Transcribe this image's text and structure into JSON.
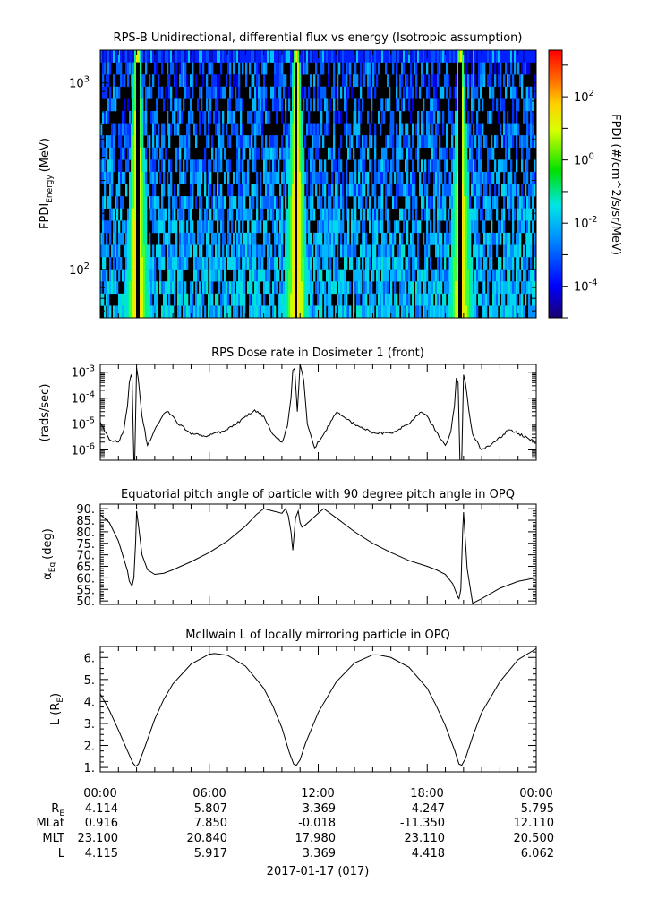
{
  "chart_data": [
    {
      "type": "heatmap",
      "title": "RPS-B  Unidirectional, differential flux vs energy (Isotropic assumption)",
      "ylabel": "FPDI",
      "ylabel_sub": "Energy",
      "ylabel_unit": "(MeV)",
      "yscale": "log",
      "ylim": [
        55,
        1500
      ],
      "ytick_values": [
        100,
        1000
      ],
      "ytick_labels": [
        {
          "base": "10",
          "exp": "2"
        },
        {
          "base": "10",
          "exp": "3"
        }
      ],
      "colorbar": {
        "label": "FPDI (#/cm^2/s/sr/MeV)",
        "scale": "log",
        "range": [
          1e-05,
          3000
        ],
        "tick_values": [
          0.0001,
          0.01,
          1,
          100
        ],
        "tick_labels": [
          {
            "base": "10",
            "exp": "-4"
          },
          {
            "base": "10",
            "exp": "-2"
          },
          {
            "base": "10",
            "exp": "0"
          },
          {
            "base": "10",
            "exp": "2"
          }
        ]
      },
      "pass_centers_hours": [
        2.0,
        10.75,
        19.8
      ]
    },
    {
      "type": "line",
      "title": "RPS  Dose rate in Dosimeter 1 (front)",
      "ylabel": "(rads/sec)",
      "yscale": "log",
      "ylim": [
        4e-07,
        0.002
      ],
      "ytick_values": [
        1e-06,
        1e-05,
        0.0001,
        0.001
      ],
      "ytick_labels": [
        {
          "base": "10",
          "exp": "-6"
        },
        {
          "base": "10",
          "exp": "-5"
        },
        {
          "base": "10",
          "exp": "-4"
        },
        {
          "base": "10",
          "exp": "-3"
        }
      ],
      "series": [
        {
          "x": [
            0,
            0.5,
            1.0,
            1.3,
            1.5,
            1.6,
            1.7,
            1.75,
            1.85,
            1.9,
            2.0,
            2.1,
            2.3,
            2.6,
            3.0,
            3.5,
            3.75,
            4.2,
            5.0,
            6.0,
            7.0,
            7.5,
            8.0,
            8.5,
            9.0,
            9.5,
            10.0,
            10.3,
            10.5,
            10.6,
            10.7,
            10.85,
            11.0,
            11.2,
            11.4,
            11.8,
            12.3,
            13.0,
            14.0,
            15.0,
            16.0,
            17.0,
            17.6,
            18.0,
            18.5,
            19.0,
            19.3,
            19.5,
            19.6,
            19.7,
            19.8,
            19.9,
            20.0,
            20.1,
            20.3,
            20.5,
            21.0,
            21.5,
            22.5,
            23.5,
            24.0
          ],
          "y": [
            1.2e-05,
            2.5e-06,
            2e-06,
            6e-06,
            5e-05,
            0.0004,
            0.0008,
            0.0006,
            4e-07,
            4e-07,
            0.0015,
            0.0005,
            2e-05,
            1.5e-06,
            6e-06,
            2.5e-05,
            3e-05,
            1.2e-05,
            4e-06,
            3.5e-06,
            6e-06,
            1e-05,
            2e-05,
            3.5e-05,
            2e-05,
            4e-06,
            2e-06,
            8e-06,
            0.0001,
            0.0012,
            0.0014,
            3e-05,
            0.002,
            0.0005,
            1e-05,
            1.2e-06,
            4e-06,
            2.8e-05,
            1e-05,
            4.5e-06,
            4.5e-06,
            1e-05,
            2.8e-05,
            2e-05,
            5e-06,
            1.5e-06,
            5e-06,
            5e-05,
            0.0006,
            0.0004,
            4e-07,
            4e-07,
            0.0008,
            0.0004,
            3e-05,
            4e-06,
            1e-06,
            1.5e-06,
            6e-06,
            3e-06,
            1.8e-06
          ]
        }
      ]
    },
    {
      "type": "line",
      "title": "Equatorial pitch angle of particle with 90 degree pitch angle in OPQ",
      "ylabel": "α",
      "ylabel_sub": "Eq",
      "ylabel_unit": "(deg)",
      "ylim": [
        48.5,
        92
      ],
      "yticks": [
        "50.",
        "55.",
        "60.",
        "65.",
        "70.",
        "75.",
        "80.",
        "85.",
        "90."
      ],
      "ytick_values": [
        50,
        55,
        60,
        65,
        70,
        75,
        80,
        85,
        90
      ],
      "series": [
        {
          "x": [
            0,
            0.5,
            1.0,
            1.5,
            1.6,
            1.75,
            1.85,
            1.95,
            2.0,
            2.1,
            2.3,
            2.6,
            3.0,
            3.5,
            4.0,
            5.0,
            6.0,
            7.0,
            8.0,
            8.6,
            9.0,
            9.5,
            10.0,
            10.2,
            10.35,
            10.5,
            10.6,
            10.75,
            10.9,
            11.0,
            11.1,
            11.3,
            12.0,
            12.3,
            13.0,
            14.0,
            15.0,
            16.0,
            17.0,
            18.0,
            18.5,
            19.0,
            19.4,
            19.6,
            19.7,
            19.75,
            19.85,
            19.95,
            20.0,
            20.2,
            20.5,
            21.0,
            22.0,
            23.0,
            24.0
          ],
          "y": [
            87.5,
            84.0,
            76.0,
            63.0,
            58.5,
            56.5,
            60.0,
            76.0,
            89.0,
            83.0,
            70.0,
            63.5,
            61.5,
            62.0,
            63.5,
            67.0,
            71.0,
            76.0,
            82.5,
            87.5,
            90.0,
            89.0,
            88.0,
            90.0,
            87.0,
            80.0,
            72.0,
            86.0,
            89.0,
            84.0,
            82.0,
            83.0,
            88.0,
            90.0,
            86.0,
            80.0,
            75.0,
            71.0,
            67.5,
            65.0,
            63.5,
            61.5,
            57.5,
            53.5,
            51.5,
            51.0,
            55.0,
            80.0,
            88.5,
            64.0,
            49.0,
            51.0,
            55.5,
            58.5,
            60.0
          ]
        }
      ]
    },
    {
      "type": "line",
      "title": "McIlwain L of locally mirroring particle in OPQ",
      "ylabel": "L (R",
      "ylabel_sub": "E",
      "ylabel_unit": ")",
      "ylim": [
        0.8,
        6.5
      ],
      "yticks": [
        "1.",
        "2.",
        "3.",
        "4.",
        "5.",
        "6."
      ],
      "ytick_values": [
        1,
        2,
        3,
        4,
        5,
        6
      ],
      "series": [
        {
          "x": [
            0,
            0.5,
            1.0,
            1.5,
            1.8,
            1.95,
            2.1,
            2.4,
            3.0,
            3.5,
            4.0,
            5.0,
            6.0,
            6.3,
            7.0,
            8.0,
            9.0,
            9.5,
            10.0,
            10.4,
            10.65,
            10.8,
            11.0,
            11.3,
            12.0,
            13.0,
            14.0,
            15.0,
            15.3,
            16.0,
            17.0,
            18.0,
            18.5,
            19.0,
            19.5,
            19.75,
            19.9,
            20.1,
            20.5,
            21.0,
            22.0,
            23.0,
            24.0
          ],
          "y": [
            4.35,
            3.6,
            2.7,
            1.75,
            1.2,
            1.05,
            1.15,
            1.8,
            3.2,
            4.1,
            4.8,
            5.7,
            6.15,
            6.18,
            6.1,
            5.6,
            4.6,
            3.8,
            2.8,
            1.7,
            1.15,
            1.1,
            1.35,
            2.1,
            3.5,
            4.9,
            5.75,
            6.12,
            6.12,
            6.0,
            5.55,
            4.6,
            3.8,
            2.9,
            1.8,
            1.15,
            1.1,
            1.4,
            2.4,
            3.5,
            4.9,
            5.9,
            6.4
          ]
        }
      ]
    }
  ],
  "xaxis": {
    "range_hours": [
      0,
      24
    ],
    "tick_labels": [
      "00:00",
      "06:00",
      "12:00",
      "18:00",
      "00:00"
    ],
    "date_label": "2017-01-17 (017)"
  },
  "ephemeris": {
    "rows": [
      {
        "label": "R",
        "label_sub": "E",
        "values": [
          "4.114",
          "5.807",
          "3.369",
          "4.247",
          "5.795"
        ]
      },
      {
        "label": "MLat",
        "label_sub": "",
        "values": [
          "0.916",
          "7.850",
          "-0.018",
          "-11.350",
          "12.110"
        ]
      },
      {
        "label": "MLT",
        "label_sub": "",
        "values": [
          "23.100",
          "20.840",
          "17.980",
          "23.110",
          "20.500"
        ]
      },
      {
        "label": "L",
        "label_sub": "",
        "values": [
          "4.115",
          "5.917",
          "3.369",
          "4.418",
          "6.062"
        ]
      }
    ]
  }
}
